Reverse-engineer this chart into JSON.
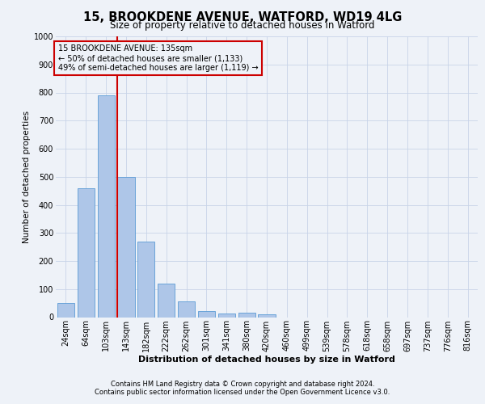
{
  "title_line1": "15, BROOKDENE AVENUE, WATFORD, WD19 4LG",
  "title_line2": "Size of property relative to detached houses in Watford",
  "xlabel": "Distribution of detached houses by size in Watford",
  "ylabel": "Number of detached properties",
  "bar_values": [
    50,
    460,
    790,
    500,
    270,
    120,
    55,
    22,
    12,
    15,
    10,
    0,
    0,
    0,
    0,
    0,
    0,
    0,
    0,
    0,
    0
  ],
  "bar_labels": [
    "24sqm",
    "64sqm",
    "103sqm",
    "143sqm",
    "182sqm",
    "222sqm",
    "262sqm",
    "301sqm",
    "341sqm",
    "380sqm",
    "420sqm",
    "460sqm",
    "499sqm",
    "539sqm",
    "578sqm",
    "618sqm",
    "658sqm",
    "697sqm",
    "737sqm",
    "776sqm",
    "816sqm"
  ],
  "bar_color": "#aec6e8",
  "bar_edge_color": "#5b9bd5",
  "grid_color": "#c8d4e8",
  "annotation_box_color": "#cc0000",
  "property_line_color": "#cc0000",
  "property_label": "15 BROOKDENE AVENUE: 135sqm",
  "annotation_line2": "← 50% of detached houses are smaller (1,133)",
  "annotation_line3": "49% of semi-detached houses are larger (1,119) →",
  "property_line_x": 2.55,
  "ylim": [
    0,
    1000
  ],
  "yticks": [
    0,
    100,
    200,
    300,
    400,
    500,
    600,
    700,
    800,
    900,
    1000
  ],
  "footnote1": "Contains HM Land Registry data © Crown copyright and database right 2024.",
  "footnote2": "Contains public sector information licensed under the Open Government Licence v3.0.",
  "background_color": "#eef2f8",
  "axes_background": "#eef2f8",
  "title1_fontsize": 10.5,
  "title2_fontsize": 8.5,
  "xlabel_fontsize": 8,
  "ylabel_fontsize": 7.5,
  "tick_fontsize": 7,
  "annot_fontsize": 7,
  "footnote_fontsize": 6
}
